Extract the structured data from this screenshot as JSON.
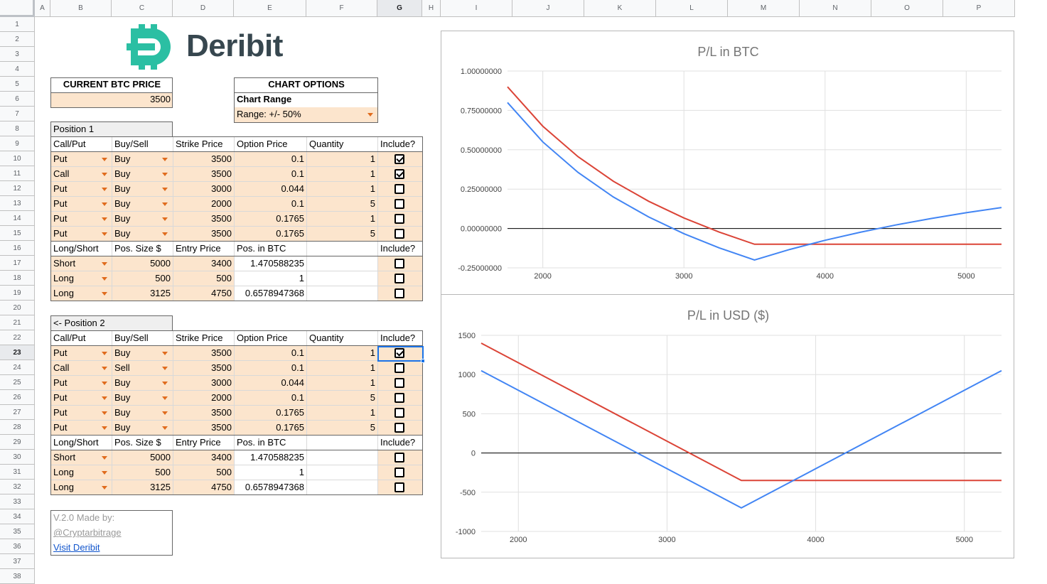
{
  "columns": [
    "A",
    "B",
    "C",
    "D",
    "E",
    "F",
    "G",
    "H",
    "I",
    "J",
    "K",
    "L",
    "M",
    "N",
    "O",
    "P"
  ],
  "selected_column": "G",
  "rows": [
    "1",
    "2",
    "3",
    "4",
    "5",
    "6",
    "7",
    "8",
    "9",
    "10",
    "11",
    "12",
    "13",
    "14",
    "15",
    "16",
    "17",
    "18",
    "19",
    "20",
    "21",
    "22",
    "23",
    "24",
    "25",
    "26",
    "27",
    "28",
    "29",
    "30",
    "31",
    "32",
    "33",
    "34",
    "35",
    "36",
    "37",
    "38"
  ],
  "selected_row": "23",
  "logo": {
    "text": "Deribit",
    "color": "#2bbfa3"
  },
  "current_price": {
    "label": "CURRENT BTC PRICE",
    "value": "3500"
  },
  "chart_options": {
    "title": "CHART OPTIONS",
    "range_label": "Chart Range",
    "range_value": "Range: +/- 50%"
  },
  "position1": {
    "title": "Position 1",
    "headers": [
      "Call/Put",
      "Buy/Sell",
      "Strike Price",
      "Option Price",
      "Quantity",
      "Include?"
    ],
    "options": [
      {
        "type": "Put",
        "side": "Buy",
        "strike": "3500",
        "price": "0.1",
        "qty": "1",
        "include": true
      },
      {
        "type": "Call",
        "side": "Buy",
        "strike": "3500",
        "price": "0.1",
        "qty": "1",
        "include": true
      },
      {
        "type": "Put",
        "side": "Buy",
        "strike": "3000",
        "price": "0.044",
        "qty": "1",
        "include": false
      },
      {
        "type": "Put",
        "side": "Buy",
        "strike": "2000",
        "price": "0.1",
        "qty": "5",
        "include": false
      },
      {
        "type": "Put",
        "side": "Buy",
        "strike": "3500",
        "price": "0.1765",
        "qty": "1",
        "include": false
      },
      {
        "type": "Put",
        "side": "Buy",
        "strike": "3500",
        "price": "0.1765",
        "qty": "5",
        "include": false
      }
    ],
    "fut_headers": [
      "Long/Short",
      "Pos. Size $",
      "Entry Price",
      "Pos. in BTC",
      "",
      "Include?"
    ],
    "futures": [
      {
        "side": "Short",
        "size": "5000",
        "entry": "3400",
        "btc": "1.470588235",
        "include": false
      },
      {
        "side": "Long",
        "size": "500",
        "entry": "500",
        "btc": "1",
        "include": false
      },
      {
        "side": "Long",
        "size": "3125",
        "entry": "4750",
        "btc": "0.6578947368",
        "include": false
      }
    ]
  },
  "position2": {
    "title": "<- Position 2",
    "headers": [
      "Call/Put",
      "Buy/Sell",
      "Strike Price",
      "Option Price",
      "Quantity",
      "Include?"
    ],
    "options": [
      {
        "type": "Put",
        "side": "Buy",
        "strike": "3500",
        "price": "0.1",
        "qty": "1",
        "include": true
      },
      {
        "type": "Call",
        "side": "Sell",
        "strike": "3500",
        "price": "0.1",
        "qty": "1",
        "include": false
      },
      {
        "type": "Put",
        "side": "Buy",
        "strike": "3000",
        "price": "0.044",
        "qty": "1",
        "include": false
      },
      {
        "type": "Put",
        "side": "Buy",
        "strike": "2000",
        "price": "0.1",
        "qty": "5",
        "include": false
      },
      {
        "type": "Put",
        "side": "Buy",
        "strike": "3500",
        "price": "0.1765",
        "qty": "1",
        "include": false
      },
      {
        "type": "Put",
        "side": "Buy",
        "strike": "3500",
        "price": "0.1765",
        "qty": "5",
        "include": false
      }
    ],
    "fut_headers": [
      "Long/Short",
      "Pos. Size $",
      "Entry Price",
      "Pos. in BTC",
      "",
      "Include?"
    ],
    "futures": [
      {
        "side": "Short",
        "size": "5000",
        "entry": "3400",
        "btc": "1.470588235",
        "include": false
      },
      {
        "side": "Long",
        "size": "500",
        "entry": "500",
        "btc": "1",
        "include": false
      },
      {
        "side": "Long",
        "size": "3125",
        "entry": "4750",
        "btc": "0.6578947368",
        "include": false
      }
    ]
  },
  "footer": {
    "line1": "V.2.0 Made by:",
    "line2": "@Cryptarbitrage",
    "link": "Visit Deribit"
  },
  "chart_data": [
    {
      "type": "line",
      "title": "P/L in BTC",
      "xlim": [
        1750,
        5250
      ],
      "ylim": [
        -0.25,
        1.0
      ],
      "xticks": [
        "2000",
        "3000",
        "4000",
        "5000"
      ],
      "yticks": [
        "1.00000000",
        "0.75000000",
        "0.50000000",
        "0.25000000",
        "0.00000000",
        "-0.25000000"
      ],
      "series": [
        {
          "color": "#db4437",
          "x": [
            1750,
            2000,
            2250,
            2500,
            2750,
            3000,
            3250,
            3500,
            4000,
            4500,
            5000,
            5250
          ],
          "y": [
            0.9,
            0.65,
            0.456,
            0.3,
            0.173,
            0.067,
            -0.023,
            -0.1,
            -0.1,
            -0.1,
            -0.1,
            -0.1
          ]
        },
        {
          "color": "#4285f4",
          "x": [
            1750,
            2000,
            2250,
            2500,
            2750,
            3000,
            3250,
            3500,
            3750,
            4000,
            4250,
            4500,
            4750,
            5000,
            5250
          ],
          "y": [
            0.8,
            0.55,
            0.356,
            0.2,
            0.073,
            -0.033,
            -0.123,
            -0.2,
            -0.133,
            -0.075,
            -0.024,
            0.022,
            0.063,
            0.1,
            0.133
          ]
        }
      ],
      "zero_line": 0
    },
    {
      "type": "line",
      "title": "P/L in USD ($)",
      "xlim": [
        1750,
        5250
      ],
      "ylim": [
        -1000,
        1500
      ],
      "xticks": [
        "2000",
        "3000",
        "4000",
        "5000"
      ],
      "yticks": [
        "1500",
        "1000",
        "500",
        "0",
        "-500",
        "-1000"
      ],
      "series": [
        {
          "color": "#db4437",
          "x": [
            1750,
            3500,
            5250
          ],
          "y": [
            1400,
            -350,
            -350
          ]
        },
        {
          "color": "#4285f4",
          "x": [
            1750,
            3500,
            5250
          ],
          "y": [
            1050,
            -700,
            1050
          ]
        }
      ],
      "zero_line": 0
    }
  ]
}
